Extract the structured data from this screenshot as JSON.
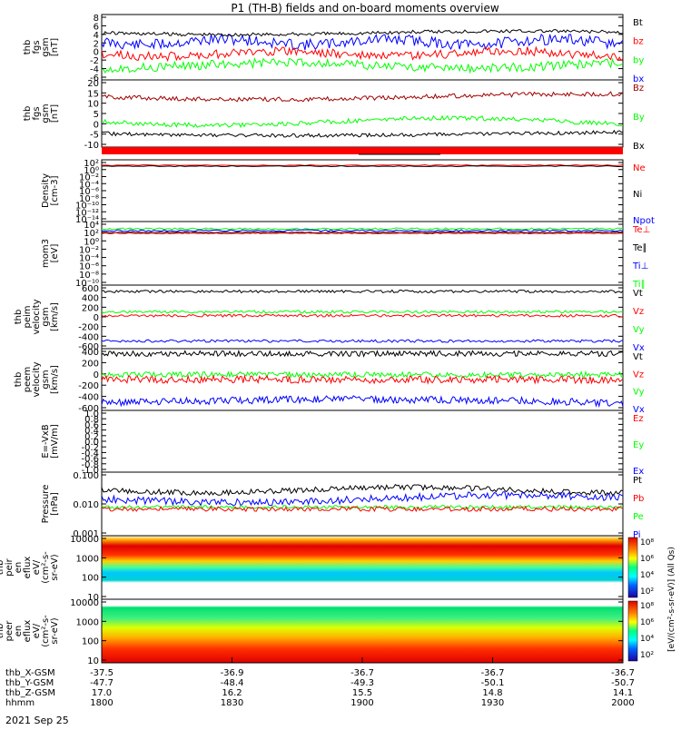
{
  "title": "P1 (TH-B) fields and on-board moments overview",
  "date_label": "2021 Sep 25",
  "colors": {
    "black": "#000000",
    "red": "#ff0000",
    "green": "#00ff00",
    "blue": "#0000ff",
    "darkred": "#a00000"
  },
  "panels": [
    {
      "id": "fgs",
      "ylabel": [
        "thb",
        "fgs",
        "gsm",
        "[nT]"
      ],
      "yticks": [
        "8",
        "6",
        "4",
        "2",
        "0",
        "-2",
        "-4",
        "-6"
      ],
      "legend": [
        {
          "text": "Bt",
          "color": "#000000"
        },
        {
          "text": "bz",
          "color": "#ff0000"
        },
        {
          "text": "by",
          "color": "#00ff00"
        },
        {
          "text": "bx",
          "color": "#0000ff"
        }
      ]
    },
    {
      "id": "fgs_dsl",
      "ylabel": [
        "thb",
        "fgs",
        "gsm",
        "[nT]"
      ],
      "yticks": [
        "20",
        "15",
        "10",
        "5",
        "0",
        "-5",
        "-10"
      ],
      "legend": [
        {
          "text": "Bz",
          "color": "#a00000"
        },
        {
          "text": "By",
          "color": "#00ff00"
        },
        {
          "text": "Bx",
          "color": "#000000"
        }
      ]
    },
    {
      "id": "density",
      "ylabel": [
        "Density",
        "[cm-3]"
      ],
      "yticks": [
        "10²",
        "10⁰",
        "10⁻²",
        "10⁻⁴",
        "10⁻⁶",
        "10⁻⁸",
        "10⁻¹⁰",
        "10⁻¹²",
        "10⁻¹⁴"
      ],
      "legend": [
        {
          "text": "Ne",
          "color": "#ff0000"
        },
        {
          "text": "Ni",
          "color": "#000000"
        },
        {
          "text": "Npot",
          "color": "#0000ff"
        }
      ]
    },
    {
      "id": "temp",
      "ylabel": [
        "mom3",
        "[eV]"
      ],
      "yticks": [
        "10⁴",
        "10²",
        "10⁰",
        "10⁻²",
        "10⁻⁴",
        "10⁻⁶",
        "10⁻⁸",
        "10⁻¹⁰"
      ],
      "legend": [
        {
          "text": "Te⊥",
          "color": "#ff0000"
        },
        {
          "text": "Te∥",
          "color": "#000000"
        },
        {
          "text": "Ti⊥",
          "color": "#0000ff"
        },
        {
          "text": "Ti∥",
          "color": "#00ff00"
        }
      ]
    },
    {
      "id": "peim",
      "ylabel": [
        "thb",
        "peim",
        "velocity",
        "gsm",
        "[km/s]"
      ],
      "yticks": [
        "600",
        "400",
        "200",
        "0",
        "-200",
        "-400",
        "-600"
      ],
      "legend": [
        {
          "text": "Vt",
          "color": "#000000"
        },
        {
          "text": "Vz",
          "color": "#ff0000"
        },
        {
          "text": "Vy",
          "color": "#00ff00"
        },
        {
          "text": "Vx",
          "color": "#0000ff"
        }
      ]
    },
    {
      "id": "peem",
      "ylabel": [
        "thb",
        "peem",
        "velocity",
        "gsm",
        "[km/s]"
      ],
      "yticks": [
        "400",
        "200",
        "0",
        "-200",
        "-400",
        "-600"
      ],
      "legend": [
        {
          "text": "Vt",
          "color": "#000000"
        },
        {
          "text": "Vz",
          "color": "#ff0000"
        },
        {
          "text": "Vy",
          "color": "#00ff00"
        },
        {
          "text": "Vx",
          "color": "#0000ff"
        }
      ]
    },
    {
      "id": "efield",
      "ylabel": [
        "E=-VxB",
        "[mV/m]"
      ],
      "yticks": [
        "1.0",
        "0.8",
        "0.6",
        "0.4",
        "0.2",
        "0.0",
        "-0.2",
        "-0.4",
        "-0.6",
        "-0.8",
        "-1.0"
      ],
      "legend": [
        {
          "text": "Ez",
          "color": "#ff0000"
        },
        {
          "text": "Ey",
          "color": "#00ff00"
        },
        {
          "text": "Ex",
          "color": "#0000ff"
        }
      ]
    },
    {
      "id": "pressure",
      "ylabel": [
        "Pressure",
        "[nPa]"
      ],
      "yticks": [
        "0.100",
        "0.010",
        "0.001"
      ],
      "legend": [
        {
          "text": "Pt",
          "color": "#000000"
        },
        {
          "text": "Pb",
          "color": "#ff0000"
        },
        {
          "text": "Pe",
          "color": "#00ff00"
        },
        {
          "text": "Pi",
          "color": "#0000ff"
        }
      ]
    },
    {
      "id": "peir",
      "ylabel": [
        "thb",
        "peir",
        "en",
        "eflux",
        "eV/",
        "(cm²-s-",
        "sr-eV)"
      ],
      "yticks": [
        "10000",
        "1000",
        "100",
        "10"
      ],
      "legend": []
    },
    {
      "id": "peer",
      "ylabel": [
        "thb",
        "peer",
        "en",
        "eflux",
        "eV/",
        "(cm²-s-",
        "sr-eV)"
      ],
      "yticks": [
        "10000",
        "1000",
        "100",
        "10"
      ],
      "legend": []
    }
  ],
  "colorbar": {
    "ticks": [
      "10⁸",
      "10⁶",
      "10⁴",
      "10²",
      "10⁸",
      "10⁶",
      "10⁴",
      "10²"
    ],
    "label": "[eV/(cm²-s-sr-eV)] (All Qs)"
  },
  "xaxis": {
    "rows": [
      {
        "name": "thb_X-GSM",
        "values": [
          "-37.5",
          "-36.9",
          "-36.7",
          "-36.7",
          "-36.7"
        ]
      },
      {
        "name": "thb_Y-GSM",
        "values": [
          "-47.7",
          "-48.4",
          "-49.3",
          "-50.1",
          "-50.7"
        ]
      },
      {
        "name": "thb_Z-GSM",
        "values": [
          "17.0",
          "16.2",
          "15.5",
          "14.8",
          "14.1"
        ]
      },
      {
        "name": "hhmm",
        "values": [
          "1800",
          "1830",
          "1900",
          "1930",
          "2000"
        ]
      }
    ]
  },
  "chart_data": {
    "type": "line",
    "title": "P1 (TH-B) fields and on-board moments overview",
    "x": [
      "1800",
      "1830",
      "1900",
      "1930",
      "2000"
    ],
    "xlabel": "hhmm",
    "date": "2021 Sep 25",
    "series": [
      {
        "name": "Bt",
        "panel": "fgs",
        "values": [
          4.2,
          3.5,
          4.0,
          4.5,
          4.0
        ]
      },
      {
        "name": "bz",
        "panel": "fgs",
        "values": [
          0.5,
          -0.5,
          1.0,
          0.0,
          -1.0
        ]
      },
      {
        "name": "by",
        "panel": "fgs",
        "values": [
          -2.5,
          -3.0,
          -1.0,
          -2.0,
          -3.5
        ]
      },
      {
        "name": "bx",
        "panel": "fgs",
        "values": [
          1.5,
          2.0,
          2.5,
          2.0,
          2.5
        ]
      },
      {
        "name": "Bz",
        "panel": "fgs_dsl",
        "values": [
          12,
          12,
          14,
          12,
          11
        ]
      },
      {
        "name": "By",
        "panel": "fgs_dsl",
        "values": [
          0,
          1,
          3,
          0,
          -2
        ]
      },
      {
        "name": "Bx",
        "panel": "fgs_dsl",
        "values": [
          -5,
          -4,
          -3,
          -6,
          -5
        ]
      },
      {
        "name": "Vt",
        "panel": "peim",
        "values": [
          550,
          550,
          560,
          550,
          560
        ]
      },
      {
        "name": "Vz",
        "panel": "peim",
        "values": [
          -50,
          -50,
          -40,
          -50,
          -60
        ]
      },
      {
        "name": "Vy",
        "panel": "peim",
        "values": [
          0,
          0,
          10,
          0,
          0
        ]
      },
      {
        "name": "Vx",
        "panel": "peim",
        "values": [
          -550,
          -550,
          -560,
          -550,
          -560
        ]
      },
      {
        "name": "Vt",
        "panel": "peem",
        "values": [
          450,
          450,
          460,
          450,
          450
        ]
      },
      {
        "name": "Vz",
        "panel": "peem",
        "values": [
          -20,
          -40,
          -30,
          -20,
          -30
        ]
      },
      {
        "name": "Vy",
        "panel": "peem",
        "values": [
          0,
          0,
          0,
          0,
          0
        ]
      },
      {
        "name": "Vx",
        "panel": "peem",
        "values": [
          -500,
          -480,
          -450,
          -480,
          -500
        ]
      },
      {
        "name": "Pt",
        "panel": "pressure",
        "values": [
          0.04,
          0.035,
          0.05,
          0.03,
          0.035
        ]
      },
      {
        "name": "Pb",
        "panel": "pressure",
        "values": [
          0.007,
          0.008,
          0.009,
          0.007,
          0.008
        ]
      },
      {
        "name": "Pe",
        "panel": "pressure",
        "values": [
          0.008,
          0.009,
          0.01,
          0.008,
          0.009
        ]
      },
      {
        "name": "Pi",
        "panel": "pressure",
        "values": [
          0.015,
          0.02,
          0.03,
          0.014,
          0.012
        ]
      }
    ]
  }
}
